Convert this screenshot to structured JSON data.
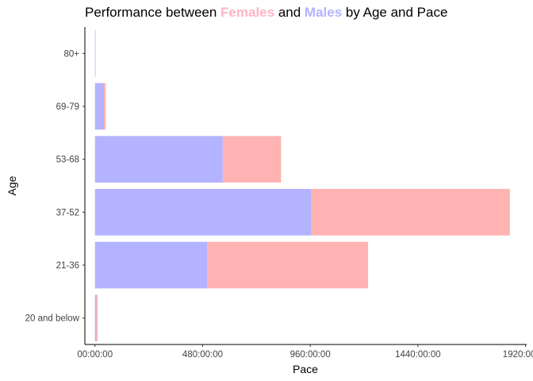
{
  "chart_data": {
    "type": "bar",
    "orientation": "horizontal",
    "stacked": true,
    "title_parts": {
      "prefix": "Performance between ",
      "females_word": "Females",
      "middle": " and ",
      "males_word": "Males",
      "suffix": " by Age and Pace"
    },
    "xlabel": "Pace",
    "ylabel": "Age",
    "categories": [
      "20 and below",
      "21-36",
      "37-52",
      "53-68",
      "69-79",
      "80+"
    ],
    "x_ticks": [
      "00:00:00",
      "480:00:00",
      "960:00:00",
      "1440:00:00",
      "1920:00:00"
    ],
    "x_tick_values_hours": [
      0,
      480,
      960,
      1440,
      1920
    ],
    "xlim_hours": [
      -45,
      1925
    ],
    "series": [
      {
        "name": "Males",
        "color": "#b3b3ff",
        "values_hours": [
          6,
          500,
          965,
          570,
          40,
          1
        ]
      },
      {
        "name": "Females",
        "color": "#ffb3b3",
        "values_hours": [
          6,
          718,
          885,
          260,
          8,
          0
        ]
      }
    ],
    "grid": false,
    "legend": "none"
  }
}
